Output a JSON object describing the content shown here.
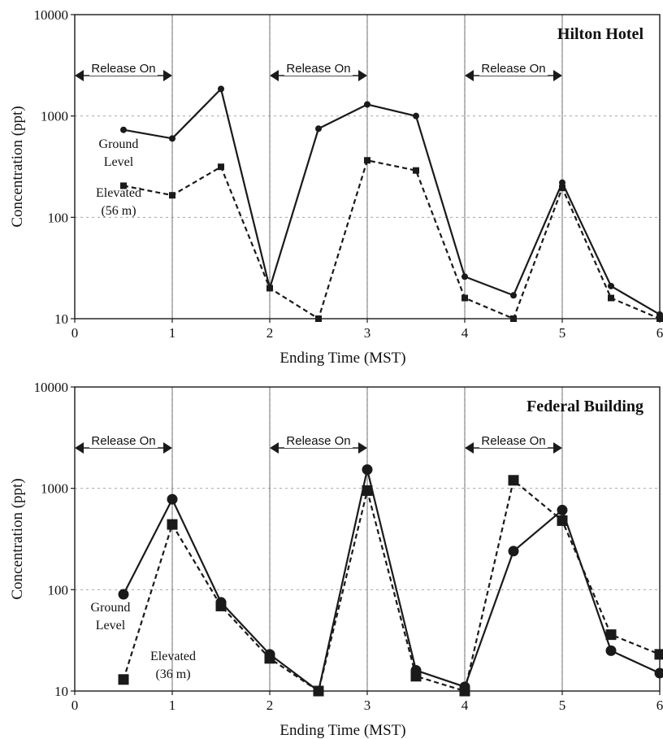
{
  "colors": {
    "line": "#1a1a1a",
    "grid": "#9a9a9a",
    "background": "#ffffff"
  },
  "chart_data": [
    {
      "type": "line",
      "title": "Hilton Hotel",
      "xlabel": "Ending Time (MST)",
      "ylabel": "Concentration (ppt)",
      "xlim": [
        0,
        6
      ],
      "ylim": [
        10,
        10000
      ],
      "yscale": "log",
      "grid": true,
      "x_ticks": [
        "0",
        "1",
        "2",
        "3",
        "4",
        "5",
        "6"
      ],
      "y_ticks": [
        "10",
        "100",
        "1000",
        "10000"
      ],
      "release_label": "Release On",
      "release_periods": [
        [
          0,
          1
        ],
        [
          2,
          3
        ],
        [
          4,
          5
        ]
      ],
      "series": [
        {
          "name": "Ground Level",
          "label_lines": [
            "Ground",
            "Level"
          ],
          "style": "solid",
          "marker": "circle",
          "x": [
            0.5,
            1,
            1.5,
            2,
            2.5,
            3,
            3.5,
            4,
            4.5,
            5,
            5.5,
            6
          ],
          "values": [
            730,
            600,
            1850,
            20,
            750,
            1300,
            1000,
            26,
            17,
            220,
            21,
            11
          ]
        },
        {
          "name": "Elevated (56 m)",
          "label_lines": [
            "Elevated",
            "(56 m)"
          ],
          "style": "dashed",
          "marker": "square",
          "x": [
            0.5,
            1,
            1.5,
            2,
            2.5,
            3,
            3.5,
            4,
            4.5,
            5,
            5.5,
            6
          ],
          "values": [
            205,
            165,
            315,
            20,
            8,
            365,
            290,
            16,
            8,
            195,
            16,
            9
          ]
        }
      ]
    },
    {
      "type": "line",
      "title": "Federal Building",
      "xlabel": "Ending Time (MST)",
      "ylabel": "Concentration (ppt)",
      "xlim": [
        0,
        6
      ],
      "ylim": [
        10,
        10000
      ],
      "yscale": "log",
      "grid": true,
      "x_ticks": [
        "0",
        "1",
        "2",
        "3",
        "4",
        "5",
        "6"
      ],
      "y_ticks": [
        "10",
        "100",
        "1000",
        "10000"
      ],
      "release_label": "Release On",
      "release_periods": [
        [
          0,
          1
        ],
        [
          2,
          3
        ],
        [
          4,
          5
        ]
      ],
      "series": [
        {
          "name": "Ground Level",
          "label_lines": [
            "Ground",
            "Level"
          ],
          "style": "solid",
          "marker": "circle",
          "x": [
            0.5,
            1,
            1.5,
            2,
            2.5,
            3,
            3.5,
            4,
            4.5,
            5,
            5.5,
            6
          ],
          "values": [
            90,
            780,
            75,
            23,
            10,
            1530,
            16,
            11,
            240,
            610,
            25,
            15
          ]
        },
        {
          "name": "Elevated (36 m)",
          "label_lines": [
            "Elevated",
            "(36 m)"
          ],
          "style": "dashed",
          "marker": "square",
          "x": [
            0.5,
            1,
            1.5,
            2,
            2.5,
            3,
            3.5,
            4,
            4.5,
            5,
            5.5,
            6
          ],
          "values": [
            13,
            440,
            69,
            21,
            8,
            950,
            14,
            10,
            1200,
            480,
            36,
            23
          ]
        }
      ]
    }
  ]
}
